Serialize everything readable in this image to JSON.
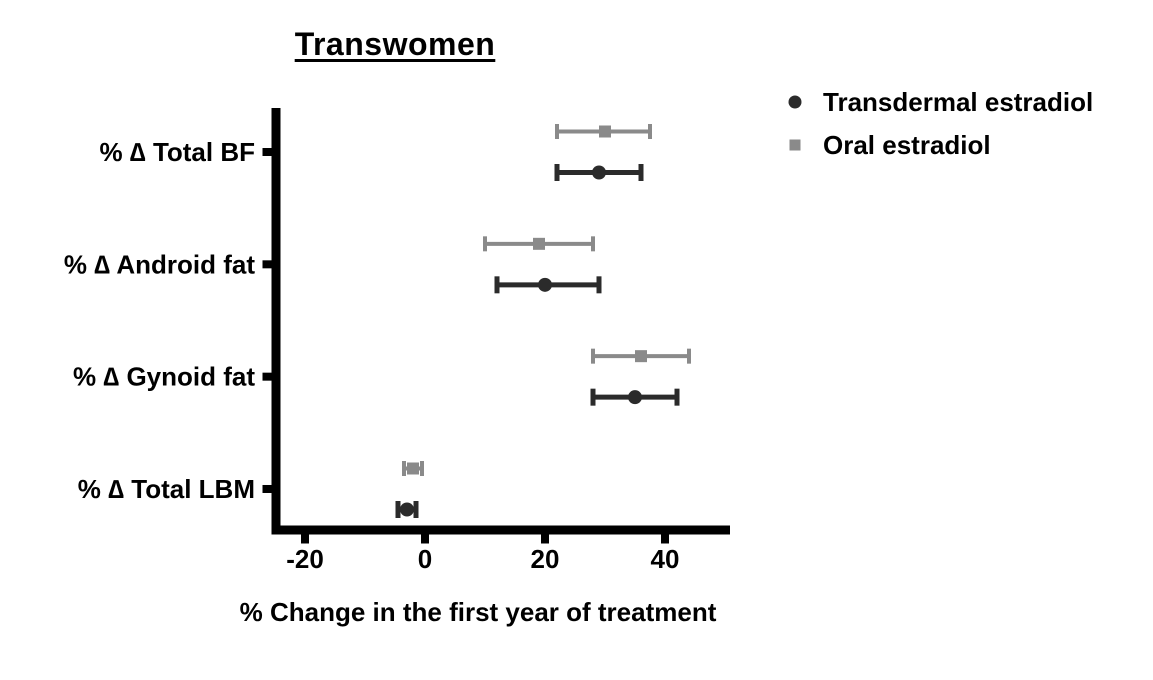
{
  "legend": {
    "items": [
      {
        "label": "Transdermal estradiol",
        "marker": "circle",
        "color": "#2b2b2b"
      },
      {
        "label": "Oral estradiol",
        "marker": "square",
        "color": "#8a8a8a"
      }
    ]
  },
  "chart_data": {
    "type": "scatter",
    "subtype": "horizontal dot plot with error bars (forest-style)",
    "title": "Transwomen",
    "xlabel": "% Change in the first year of treatment",
    "ylabel": "",
    "categories": [
      "% ∆ Total BF",
      "% ∆ Android fat",
      "% ∆ Gynoid fat",
      "% ∆ Total LBM"
    ],
    "xticks": [
      -20,
      0,
      20,
      40
    ],
    "xlim": [
      -26,
      51
    ],
    "grid": false,
    "legend_position": "top-right",
    "axis_color": "#000000",
    "series": [
      {
        "name": "Oral estradiol",
        "marker": "square",
        "color": "#8a8a8a",
        "position_in_row": "above",
        "values": [
          30,
          19,
          36,
          -2
        ],
        "ci_low": [
          22,
          10,
          28,
          -3.5
        ],
        "ci_high": [
          37.5,
          28,
          44,
          -0.5
        ]
      },
      {
        "name": "Transdermal estradiol",
        "marker": "circle",
        "color": "#2b2b2b",
        "position_in_row": "below",
        "values": [
          29,
          20,
          35,
          -3
        ],
        "ci_low": [
          22,
          12,
          28,
          -4.5
        ],
        "ci_high": [
          36,
          29,
          42,
          -1.5
        ]
      }
    ]
  }
}
